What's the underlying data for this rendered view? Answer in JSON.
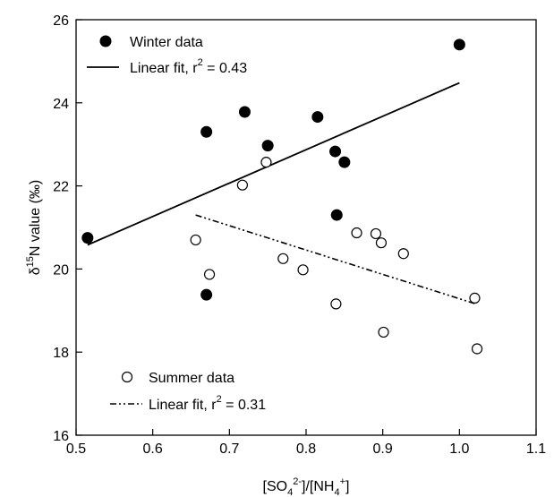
{
  "chart_data": {
    "type": "scatter",
    "title": "",
    "xlabel": "[SO4 2-]/[NH4 +]",
    "ylabel": "δ15N value (‰)",
    "xlim": [
      0.5,
      1.1
    ],
    "ylim": [
      16,
      26
    ],
    "xticks": [
      "0.5",
      "0.6",
      "0.7",
      "0.8",
      "0.9",
      "1.0",
      "1.1"
    ],
    "yticks": [
      "16",
      "18",
      "20",
      "22",
      "24",
      "26"
    ],
    "grid": false,
    "series": [
      {
        "name": "Winter data",
        "marker": "filled-circle",
        "color": "#000000",
        "x": [
          0.515,
          0.67,
          0.67,
          0.72,
          0.75,
          0.815,
          0.838,
          0.84,
          0.85,
          1.0
        ],
        "y": [
          20.75,
          23.3,
          19.38,
          23.78,
          22.97,
          23.66,
          22.83,
          21.3,
          22.57,
          25.4
        ]
      },
      {
        "name": "Summer data",
        "marker": "open-circle",
        "color": "#000000",
        "x": [
          0.656,
          0.674,
          0.717,
          0.748,
          0.77,
          0.796,
          0.839,
          0.866,
          0.891,
          0.898,
          0.901,
          0.927,
          1.02,
          1.023
        ],
        "y": [
          20.7,
          19.87,
          22.02,
          22.57,
          20.25,
          19.98,
          19.16,
          20.87,
          20.85,
          20.63,
          18.48,
          20.37,
          19.3,
          18.08
        ]
      }
    ],
    "fits": [
      {
        "name": "Linear fit, r² = 0.43",
        "style": "solid",
        "x": [
          0.515,
          1.0
        ],
        "y": [
          20.58,
          24.48
        ]
      },
      {
        "name": "Linear fit, r² = 0.31",
        "style": "dash-dot-dot",
        "x": [
          0.656,
          1.023
        ],
        "y": [
          21.3,
          19.15
        ]
      }
    ],
    "legend": {
      "winter_label": "Winter data",
      "winter_fit_label": "Linear fit, r",
      "winter_fit_sup": "2",
      "winter_fit_value": " = 0.43",
      "summer_label": "Summer data",
      "summer_fit_label": "Linear fit, r",
      "summer_fit_sup": "2",
      "summer_fit_value": " = 0.31"
    },
    "axis_text": {
      "ylabel_delta": "δ",
      "ylabel_sup": "15",
      "ylabel_rest": "N value (‰)",
      "xlabel_open": "[SO",
      "xlabel_sub1": "4",
      "xlabel_sup1": "2-",
      "xlabel_mid": "]/[NH",
      "xlabel_sub2": "4",
      "xlabel_sup2": "+",
      "xlabel_close": "]"
    }
  }
}
